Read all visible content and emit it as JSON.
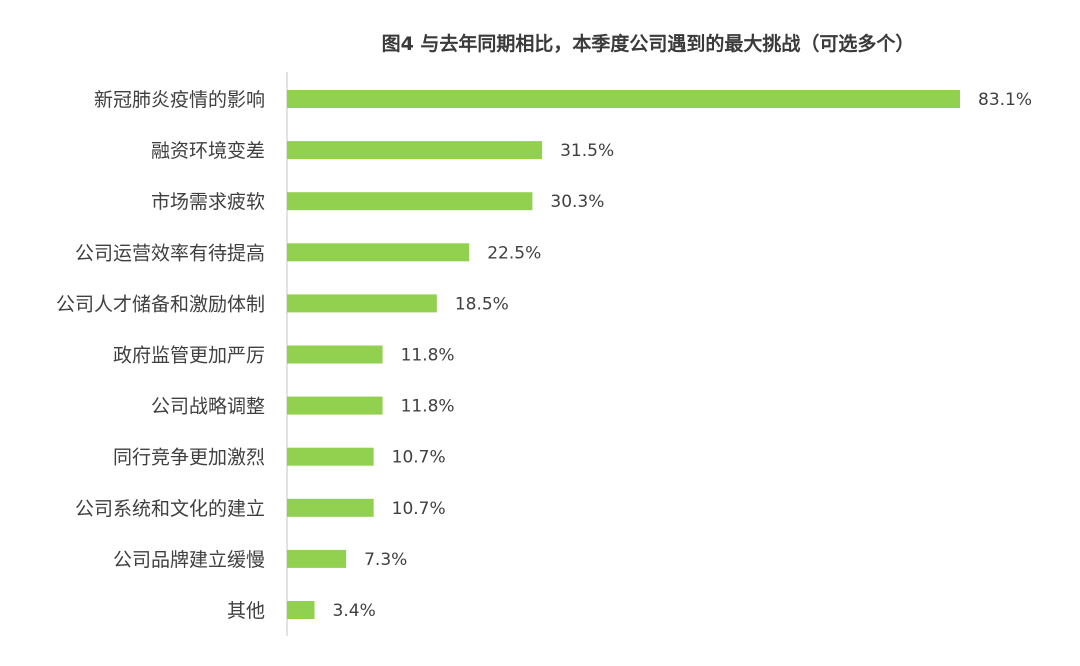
{
  "chart_data": {
    "type": "bar",
    "orientation": "horizontal",
    "title": "图4 与去年同期相比，本季度公司遇到的最大挑战（可选多个）",
    "categories": [
      "新冠肺炎疫情的影响",
      "融资环境变差",
      "市场需求疲软",
      "公司运营效率有待提高",
      "公司人才储备和激励体制",
      "政府监管更加严厉",
      "公司战略调整",
      "同行竞争更加激烈",
      "公司系统和文化的建立",
      "公司品牌建立缓慢",
      "其他"
    ],
    "values": [
      83.1,
      31.5,
      30.3,
      22.5,
      18.5,
      11.8,
      11.8,
      10.7,
      10.7,
      7.3,
      3.4
    ],
    "value_labels": [
      "83.1%",
      "31.5%",
      "30.3%",
      "22.5%",
      "18.5%",
      "11.8%",
      "11.8%",
      "10.7%",
      "10.7%",
      "7.3%",
      "3.4%"
    ],
    "xlim": [
      0,
      100
    ],
    "grid": false,
    "legend": "none",
    "bar_color": "#92d050"
  }
}
